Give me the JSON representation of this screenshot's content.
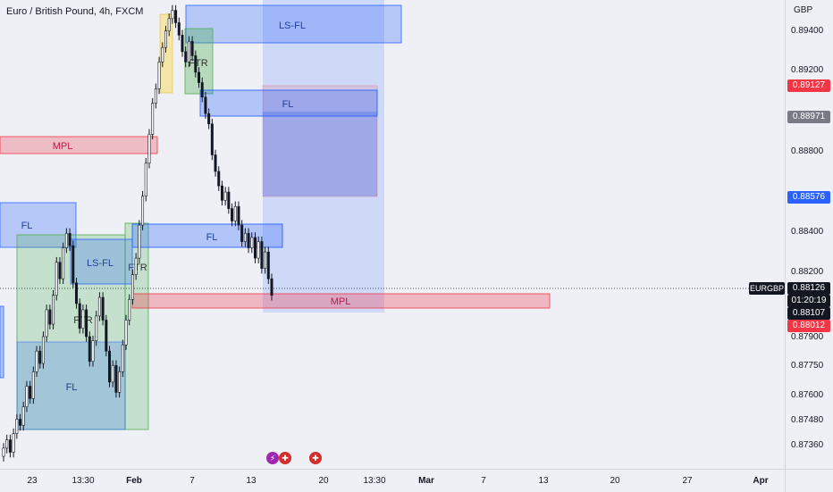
{
  "header": {
    "title": "Euro / British Pound, 4h, FXCM"
  },
  "symbol_tag": "EURGBP",
  "price_axis": {
    "currency": "GBP",
    "ticks": [
      "0.89400",
      "0.89200",
      "0.88800",
      "0.88400",
      "0.88200",
      "0.87900",
      "0.87750",
      "0.87600",
      "0.87480",
      "0.87360"
    ],
    "labels": {
      "red_top": "0.89127",
      "grey": "0.88971",
      "blue": "0.88576",
      "last": "0.88126",
      "countdown": "01:20:19",
      "dark": "0.88107",
      "red_bottom": "0.88012"
    }
  },
  "time_axis": {
    "ticks": [
      "23",
      "13:30",
      "Feb",
      "7",
      "13",
      "20",
      "13:30",
      "Mar",
      "7",
      "13",
      "20",
      "27",
      "Apr"
    ]
  },
  "zones": {
    "mpl_left": "MPL",
    "ls_fl_top": "LS-FL",
    "ftr_top": "FTR",
    "fl_upper": "FL",
    "fl_left": "FL",
    "ls_fl_left": "LS-FL",
    "ftr_mid": "FTR",
    "ftr_left": "FTR",
    "fl_mid": "FL",
    "mpl_bottom": "MPL",
    "fl_bottom": "FL"
  },
  "colors": {
    "background": "#eef0f6",
    "candle": "#131722",
    "blue_zone": "#2962ff",
    "green_zone": "#4caf50",
    "red_zone": "#f23645",
    "yellow_zone": "#f9d94a"
  },
  "chart_data": {
    "type": "candlestick",
    "symbol": "EURGBP",
    "timeframe": "4h",
    "ylim": [
      0.8728,
      0.8955
    ],
    "close_series": [
      0.8738,
      0.8742,
      0.8736,
      0.8745,
      0.8752,
      0.8749,
      0.8758,
      0.8768,
      0.8762,
      0.8775,
      0.8785,
      0.8779,
      0.8792,
      0.8805,
      0.8798,
      0.8812,
      0.8828,
      0.882,
      0.8835,
      0.8842,
      0.8836,
      0.8818,
      0.8808,
      0.8796,
      0.8805,
      0.8792,
      0.878,
      0.879,
      0.8802,
      0.8811,
      0.88,
      0.8785,
      0.877,
      0.8778,
      0.8765,
      0.8775,
      0.8788,
      0.88,
      0.881,
      0.8822,
      0.883,
      0.8846,
      0.886,
      0.8876,
      0.889,
      0.8905,
      0.8912,
      0.8925,
      0.8932,
      0.894,
      0.8946,
      0.895,
      0.8944,
      0.8938,
      0.893,
      0.8925,
      0.8935,
      0.8928,
      0.892,
      0.8915,
      0.8908,
      0.89,
      0.8895,
      0.888,
      0.8872,
      0.8865,
      0.8858,
      0.8862,
      0.8854,
      0.8848,
      0.8855,
      0.8846,
      0.8838,
      0.8842,
      0.8835,
      0.884,
      0.883,
      0.8838,
      0.8825,
      0.8833,
      0.882,
      0.8812
    ],
    "last_price": 0.88126
  }
}
